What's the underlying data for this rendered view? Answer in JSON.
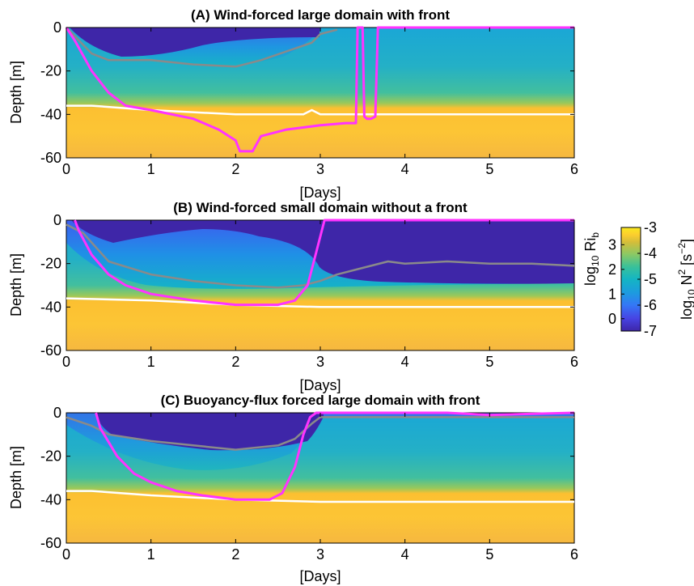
{
  "colors": {
    "mixed_layer_depth": "#ff33ff",
    "line_gray": "#8a8a8a",
    "line_white": "#ffffff",
    "colormap": [
      "#3e26a8",
      "#4743e3",
      "#3477f6",
      "#1d9bdf",
      "#14b5c3",
      "#39c19a",
      "#8ac865",
      "#d6bd39",
      "#fcce2e",
      "#f9e91f"
    ]
  },
  "colorbar": {
    "n2_label": "log",
    "n2_label_sub": "10",
    "n2_label_tail": " N",
    "n2_label_sup": "2",
    "n2_units": " [s",
    "n2_units_sup": "−2",
    "n2_units_tail": "]",
    "ri_label": "log",
    "ri_label_sub": "10",
    "ri_label_tail": " Ri",
    "ri_label_sub2": "b",
    "n2_ticks": [
      "-3",
      "-4",
      "-5",
      "-6",
      "-7"
    ],
    "n2_tick_values": [
      -3,
      -4,
      -5,
      -6,
      -7
    ],
    "ri_ticks": [
      "3",
      "2",
      "1",
      "0"
    ],
    "ri_tick_values": [
      3,
      2,
      1,
      0
    ],
    "n2_range": [
      -7,
      -3
    ],
    "ri_range": [
      -0.5,
      3.7
    ]
  },
  "chart_data": [
    {
      "type": "heatmap",
      "title": "(A) Wind-forced large domain with front",
      "xlabel": "[Days]",
      "ylabel": "Depth [m]",
      "xlim": [
        0,
        6
      ],
      "ylim": [
        -60,
        0
      ],
      "xticks": [
        "0",
        "1",
        "2",
        "3",
        "4",
        "5",
        "6"
      ],
      "xtick_values": [
        0,
        1,
        2,
        3,
        4,
        5,
        6
      ],
      "yticks": [
        "0",
        "-20",
        "-40",
        "-60"
      ],
      "ytick_values": [
        0,
        -20,
        -40,
        -60
      ],
      "series": [
        {
          "color": "gray",
          "x": [
            0,
            0.1,
            0.3,
            0.5,
            0.8,
            1.0,
            1.5,
            2.0,
            2.3,
            2.6,
            2.9,
            3.0,
            3.2
          ],
          "y": [
            0,
            -4,
            -12,
            -15,
            -15,
            -15,
            -17,
            -18,
            -15,
            -11,
            -7,
            -3,
            -1
          ]
        },
        {
          "color": "white",
          "x": [
            0,
            0.3,
            1.0,
            2.0,
            2.8,
            2.9,
            3.0,
            4.0,
            5.0,
            6.0
          ],
          "y": [
            -36,
            -36,
            -38,
            -40,
            -40,
            -38,
            -40,
            -40,
            -40,
            -40
          ]
        },
        {
          "color": "magenta",
          "x": [
            0,
            0.1,
            0.3,
            0.5,
            0.7,
            1.0,
            1.5,
            1.8,
            2.0,
            2.05,
            2.2,
            2.3,
            2.6,
            3.0,
            3.3,
            3.42,
            3.44,
            3.46,
            3.5,
            3.52,
            3.55,
            3.6,
            3.65,
            3.68,
            4.0,
            5.0,
            6.0
          ],
          "y": [
            0,
            -6,
            -20,
            -30,
            -36,
            -38,
            -42,
            -47,
            -52,
            -57,
            -57,
            -50,
            -47,
            -45,
            -44,
            -44,
            0,
            0,
            0,
            -41,
            -42,
            -42,
            -41,
            0,
            0,
            0,
            0
          ]
        }
      ]
    },
    {
      "type": "heatmap",
      "title": "(B) Wind-forced small domain without a front",
      "xlabel": "[Days]",
      "ylabel": "Depth [m]",
      "xlim": [
        0,
        6
      ],
      "ylim": [
        -60,
        0
      ],
      "xticks": [
        "0",
        "1",
        "2",
        "3",
        "4",
        "5",
        "6"
      ],
      "xtick_values": [
        0,
        1,
        2,
        3,
        4,
        5,
        6
      ],
      "yticks": [
        "0",
        "-20",
        "-40",
        "-60"
      ],
      "ytick_values": [
        0,
        -20,
        -40,
        -60
      ],
      "series": [
        {
          "color": "gray",
          "x": [
            0,
            0.2,
            0.5,
            1.0,
            1.5,
            2.0,
            2.5,
            2.8,
            3.0,
            3.2,
            3.5,
            3.8,
            4.0,
            4.5,
            5.0,
            5.5,
            6.0
          ],
          "y": [
            -2,
            -6,
            -19,
            -25,
            -28,
            -30,
            -31,
            -30,
            -28,
            -25,
            -22,
            -19,
            -20,
            -19,
            -20,
            -20,
            -21
          ]
        },
        {
          "color": "white",
          "x": [
            0,
            1.0,
            2.0,
            3.0,
            4.0,
            5.0,
            6.0
          ],
          "y": [
            -36,
            -37,
            -39,
            -40,
            -40,
            -40,
            -40
          ]
        },
        {
          "color": "magenta",
          "x": [
            0.1,
            0.15,
            0.3,
            0.5,
            0.7,
            1.0,
            1.5,
            2.0,
            2.5,
            2.7,
            2.85,
            2.95,
            3.05,
            3.1,
            4.0,
            5.0,
            6.0
          ],
          "y": [
            0,
            -5,
            -16,
            -25,
            -30,
            -34,
            -37,
            -39,
            -39,
            -37,
            -30,
            -15,
            0,
            0,
            0,
            0,
            0
          ]
        }
      ]
    },
    {
      "type": "heatmap",
      "title": "(C) Buoyancy-flux forced large domain with front",
      "xlabel": "[Days]",
      "ylabel": "Depth [m]",
      "xlim": [
        0,
        6
      ],
      "ylim": [
        -60,
        0
      ],
      "xticks": [
        "0",
        "1",
        "2",
        "3",
        "4",
        "5",
        "6"
      ],
      "xtick_values": [
        0,
        1,
        2,
        3,
        4,
        5,
        6
      ],
      "yticks": [
        "0",
        "-20",
        "-40",
        "-60"
      ],
      "ytick_values": [
        0,
        -20,
        -40,
        -60
      ],
      "series": [
        {
          "color": "gray",
          "x": [
            0,
            0.3,
            0.5,
            1.0,
            1.5,
            2.0,
            2.5,
            2.7,
            2.9,
            3.0,
            3.5,
            4.0,
            5.0,
            6.0
          ],
          "y": [
            -2,
            -6,
            -10,
            -13,
            -15,
            -17,
            -15,
            -12,
            -5,
            -2,
            -2,
            -2,
            -2,
            -2
          ]
        },
        {
          "color": "white",
          "x": [
            0,
            0.3,
            1.0,
            2.0,
            3.0,
            4.0,
            5.0,
            6.0
          ],
          "y": [
            -36,
            -36,
            -38,
            -40,
            -41,
            -41,
            -41,
            -41
          ]
        },
        {
          "color": "magenta",
          "x": [
            0.35,
            0.4,
            0.6,
            0.8,
            1.0,
            1.3,
            1.6,
            2.0,
            2.4,
            2.55,
            2.7,
            2.8,
            2.88,
            2.95,
            3.5,
            4.0,
            4.5,
            5.0,
            6.0
          ],
          "y": [
            0,
            -7,
            -20,
            -28,
            -32,
            -36,
            -38,
            -40,
            -40,
            -37,
            -25,
            -10,
            -2,
            0,
            0,
            0,
            0,
            -1,
            0
          ]
        }
      ]
    }
  ]
}
